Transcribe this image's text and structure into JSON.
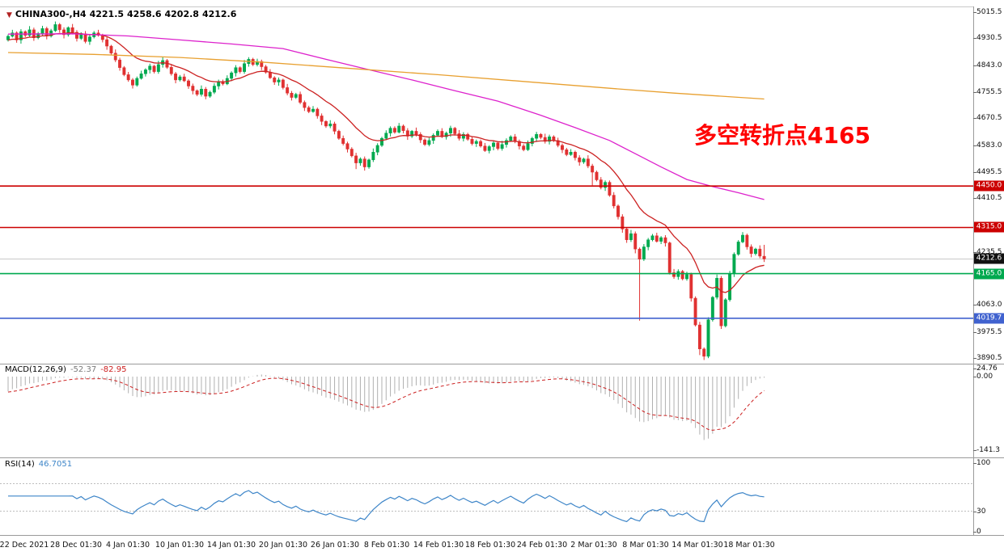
{
  "title_bar": {
    "symbol": "CHINA300-,H4",
    "open": "4221.5",
    "high": "4258.6",
    "low": "4202.8",
    "close": "4212.6"
  },
  "annotation": {
    "text": "多空转折点4165",
    "color": "#ff0000"
  },
  "bid": {
    "price": 4212.6,
    "label": "4212.6",
    "tag_bg": "#111111",
    "line_color": "#c9c9c9"
  },
  "levels": [
    {
      "price": 4450.0,
      "label": "4450.0",
      "color": "#cc0000"
    },
    {
      "price": 4315.0,
      "label": "4315.0",
      "color": "#cc0000"
    },
    {
      "price": 4165.0,
      "label": "4165.0",
      "color": "#00a94f"
    },
    {
      "price": 4019.7,
      "label": "4019.7",
      "color": "#4062cf"
    }
  ],
  "price_axis": {
    "ticks": [
      {
        "v": 5015.5,
        "label": "5015.5"
      },
      {
        "v": 4930.5,
        "label": "4930.5"
      },
      {
        "v": 4843.0,
        "label": "4843.0"
      },
      {
        "v": 4755.5,
        "label": "4755.5"
      },
      {
        "v": 4670.5,
        "label": "4670.5"
      },
      {
        "v": 4583.0,
        "label": "4583.0"
      },
      {
        "v": 4495.5,
        "label": "4495.5"
      },
      {
        "v": 4410.5,
        "label": "4410.5"
      },
      {
        "v": 4235.5,
        "label": "4235.5"
      },
      {
        "v": 4063.0,
        "label": "4063.0"
      },
      {
        "v": 3975.5,
        "label": "3975.5"
      },
      {
        "v": 3890.5,
        "label": "3890.5"
      }
    ]
  },
  "time_axis": {
    "labels": [
      "22 Dec 2021",
      "28 Dec 01:30",
      "4 Jan 01:30",
      "10 Jan 01:30",
      "14 Jan 01:30",
      "20 Jan 01:30",
      "26 Jan 01:30",
      "8 Feb 01:30",
      "14 Feb 01:30",
      "18 Feb 01:30",
      "24 Feb 01:30",
      "2 Mar 01:30",
      "8 Mar 01:30",
      "14 Mar 01:30",
      "18 Mar 01:30"
    ]
  },
  "chart_data": {
    "type": "candlestick",
    "symbol": "CHINA300-",
    "timeframe": "H4",
    "up_color": "#00a94f",
    "down_color": "#e03131",
    "candles": [
      [
        4925,
        4943,
        4920,
        4937
      ],
      [
        4937,
        4958,
        4933,
        4948
      ],
      [
        4948,
        4953,
        4916,
        4925
      ],
      [
        4925,
        4960,
        4913,
        4952
      ],
      [
        4952,
        4956,
        4934,
        4940
      ],
      [
        4940,
        4970,
        4933,
        4958
      ],
      [
        4958,
        4965,
        4922,
        4932
      ],
      [
        4932,
        4951,
        4927,
        4946
      ],
      [
        4946,
        4971,
        4940,
        4962
      ],
      [
        4962,
        4968,
        4927,
        4938
      ],
      [
        4938,
        4961,
        4933,
        4955
      ],
      [
        4955,
        4985,
        4951,
        4975
      ],
      [
        4975,
        4980,
        4949,
        4958
      ],
      [
        4958,
        4966,
        4930,
        4942
      ],
      [
        4942,
        4969,
        4936,
        4965
      ],
      [
        4965,
        4977,
        4943,
        4950
      ],
      [
        4950,
        4957,
        4920,
        4930
      ],
      [
        4930,
        4950,
        4925,
        4945
      ],
      [
        4945,
        4954,
        4914,
        4920
      ],
      [
        4920,
        4941,
        4909,
        4935
      ],
      [
        4935,
        4954,
        4930,
        4948
      ],
      [
        4948,
        4958,
        4936,
        4940
      ],
      [
        4940,
        4945,
        4917,
        4926
      ],
      [
        4926,
        4934,
        4893,
        4905
      ],
      [
        4905,
        4909,
        4876,
        4882
      ],
      [
        4882,
        4894,
        4853,
        4860
      ],
      [
        4860,
        4867,
        4825,
        4835
      ],
      [
        4835,
        4840,
        4807,
        4812
      ],
      [
        4812,
        4821,
        4789,
        4795
      ],
      [
        4795,
        4801,
        4767,
        4778
      ],
      [
        4778,
        4806,
        4773,
        4800
      ],
      [
        4800,
        4825,
        4796,
        4815
      ],
      [
        4815,
        4833,
        4806,
        4828
      ],
      [
        4828,
        4848,
        4816,
        4840
      ],
      [
        4840,
        4844,
        4816,
        4822
      ],
      [
        4822,
        4857,
        4815,
        4845
      ],
      [
        4845,
        4871,
        4835,
        4858
      ],
      [
        4858,
        4863,
        4831,
        4836
      ],
      [
        4836,
        4845,
        4809,
        4815
      ],
      [
        4815,
        4821,
        4784,
        4795
      ],
      [
        4795,
        4811,
        4790,
        4805
      ],
      [
        4805,
        4815,
        4788,
        4792
      ],
      [
        4792,
        4797,
        4766,
        4775
      ],
      [
        4775,
        4783,
        4748,
        4760
      ],
      [
        4760,
        4764,
        4742,
        4748
      ],
      [
        4748,
        4777,
        4741,
        4765
      ],
      [
        4765,
        4772,
        4732,
        4742
      ],
      [
        4742,
        4760,
        4737,
        4755
      ],
      [
        4755,
        4784,
        4749,
        4775
      ],
      [
        4775,
        4796,
        4764,
        4790
      ],
      [
        4790,
        4796,
        4777,
        4782
      ],
      [
        4782,
        4810,
        4778,
        4800
      ],
      [
        4800,
        4823,
        4791,
        4818
      ],
      [
        4818,
        4843,
        4806,
        4835
      ],
      [
        4835,
        4839,
        4816,
        4822
      ],
      [
        4822,
        4860,
        4815,
        4848
      ],
      [
        4848,
        4869,
        4838,
        4862
      ],
      [
        4862,
        4867,
        4840,
        4845
      ],
      [
        4845,
        4864,
        4839,
        4855
      ],
      [
        4855,
        4861,
        4827,
        4838
      ],
      [
        4838,
        4844,
        4815,
        4820
      ],
      [
        4820,
        4830,
        4798,
        4802
      ],
      [
        4802,
        4807,
        4779,
        4788
      ],
      [
        4788,
        4803,
        4776,
        4795
      ],
      [
        4795,
        4799,
        4764,
        4770
      ],
      [
        4770,
        4782,
        4745,
        4752
      ],
      [
        4752,
        4759,
        4728,
        4738
      ],
      [
        4738,
        4753,
        4733,
        4748
      ],
      [
        4748,
        4757,
        4716,
        4722
      ],
      [
        4722,
        4728,
        4694,
        4705
      ],
      [
        4705,
        4711,
        4687,
        4692
      ],
      [
        4692,
        4710,
        4688,
        4700
      ],
      [
        4700,
        4705,
        4669,
        4678
      ],
      [
        4678,
        4686,
        4648,
        4660
      ],
      [
        4660,
        4664,
        4639,
        4645
      ],
      [
        4645,
        4664,
        4638,
        4652
      ],
      [
        4652,
        4659,
        4618,
        4628
      ],
      [
        4628,
        4633,
        4600,
        4605
      ],
      [
        4605,
        4614,
        4582,
        4588
      ],
      [
        4588,
        4594,
        4559,
        4570
      ],
      [
        4570,
        4576,
        4543,
        4548
      ],
      [
        4548,
        4558,
        4505,
        4525
      ],
      [
        4525,
        4543,
        4516,
        4538
      ],
      [
        4538,
        4546,
        4500,
        4512
      ],
      [
        4512,
        4539,
        4506,
        4535
      ],
      [
        4535,
        4572,
        4528,
        4560
      ],
      [
        4560,
        4589,
        4550,
        4582
      ],
      [
        4582,
        4610,
        4577,
        4605
      ],
      [
        4605,
        4631,
        4599,
        4622
      ],
      [
        4622,
        4644,
        4611,
        4638
      ],
      [
        4638,
        4644,
        4620,
        4625
      ],
      [
        4625,
        4655,
        4621,
        4645
      ],
      [
        4645,
        4650,
        4621,
        4630
      ],
      [
        4630,
        4638,
        4600,
        4612
      ],
      [
        4612,
        4632,
        4606,
        4628
      ],
      [
        4628,
        4640,
        4611,
        4618
      ],
      [
        4618,
        4625,
        4590,
        4600
      ],
      [
        4600,
        4605,
        4580,
        4585
      ],
      [
        4585,
        4607,
        4579,
        4598
      ],
      [
        4598,
        4621,
        4587,
        4615
      ],
      [
        4615,
        4634,
        4610,
        4628
      ],
      [
        4628,
        4638,
        4606,
        4610
      ],
      [
        4610,
        4627,
        4601,
        4622
      ],
      [
        4622,
        4646,
        4610,
        4638
      ],
      [
        4638,
        4642,
        4614,
        4620
      ],
      [
        4620,
        4632,
        4598,
        4605
      ],
      [
        4605,
        4625,
        4595,
        4618
      ],
      [
        4618,
        4623,
        4597,
        4602
      ],
      [
        4602,
        4611,
        4582,
        4588
      ],
      [
        4588,
        4601,
        4577,
        4595
      ],
      [
        4595,
        4601,
        4575,
        4580
      ],
      [
        4580,
        4590,
        4561,
        4565
      ],
      [
        4565,
        4583,
        4556,
        4578
      ],
      [
        4578,
        4598,
        4566,
        4590
      ],
      [
        4590,
        4594,
        4566,
        4572
      ],
      [
        4572,
        4597,
        4565,
        4585
      ],
      [
        4585,
        4605,
        4575,
        4598
      ],
      [
        4598,
        4615,
        4593,
        4610
      ],
      [
        4610,
        4619,
        4589,
        4595
      ],
      [
        4595,
        4601,
        4569,
        4580
      ],
      [
        4580,
        4586,
        4563,
        4568
      ],
      [
        4568,
        4598,
        4564,
        4588
      ],
      [
        4588,
        4610,
        4579,
        4605
      ],
      [
        4605,
        4626,
        4593,
        4618
      ],
      [
        4618,
        4622,
        4602,
        4608
      ],
      [
        4608,
        4620,
        4588,
        4595
      ],
      [
        4595,
        4617,
        4585,
        4610
      ],
      [
        4610,
        4615,
        4593,
        4598
      ],
      [
        4598,
        4607,
        4576,
        4582
      ],
      [
        4582,
        4588,
        4557,
        4568
      ],
      [
        4568,
        4574,
        4547,
        4552
      ],
      [
        4552,
        4570,
        4548,
        4560
      ],
      [
        4560,
        4565,
        4533,
        4542
      ],
      [
        4542,
        4550,
        4516,
        4528
      ],
      [
        4528,
        4542,
        4522,
        4538
      ],
      [
        4538,
        4550,
        4508,
        4515
      ],
      [
        4515,
        4522,
        4452,
        4495
      ],
      [
        4495,
        4500,
        4465,
        4470
      ],
      [
        4470,
        4479,
        4439,
        4445
      ],
      [
        4445,
        4468,
        4434,
        4462
      ],
      [
        4462,
        4468,
        4415,
        4420
      ],
      [
        4420,
        4430,
        4377,
        4385
      ],
      [
        4385,
        4390,
        4341,
        4350
      ],
      [
        4350,
        4358,
        4298,
        4310
      ],
      [
        4310,
        4314,
        4265,
        4275
      ],
      [
        4275,
        4307,
        4268,
        4295
      ],
      [
        4295,
        4302,
        4231,
        4245
      ],
      [
        4245,
        4250,
        4012,
        4212
      ],
      [
        4212,
        4261,
        4206,
        4252
      ],
      [
        4252,
        4281,
        4241,
        4275
      ],
      [
        4275,
        4294,
        4270,
        4288
      ],
      [
        4288,
        4298,
        4266,
        4270
      ],
      [
        4270,
        4287,
        4261,
        4282
      ],
      [
        4282,
        4290,
        4253,
        4265
      ],
      [
        4265,
        4269,
        4162,
        4168
      ],
      [
        4168,
        4180,
        4148,
        4155
      ],
      [
        4155,
        4179,
        4145,
        4172
      ],
      [
        4172,
        4177,
        4143,
        4148
      ],
      [
        4148,
        4171,
        4142,
        4162
      ],
      [
        4162,
        4168,
        4074,
        4085
      ],
      [
        4085,
        4091,
        3993,
        3998
      ],
      [
        3998,
        4008,
        3900,
        3920
      ],
      [
        3920,
        3925,
        3884,
        3896
      ],
      [
        3896,
        4023,
        3890,
        4015
      ],
      [
        4015,
        4092,
        4009,
        4088
      ],
      [
        4088,
        4162,
        4081,
        4150
      ],
      [
        4150,
        4157,
        3985,
        3995
      ],
      [
        3995,
        4085,
        3990,
        4080
      ],
      [
        4080,
        4174,
        4074,
        4165
      ],
      [
        4165,
        4234,
        4154,
        4228
      ],
      [
        4228,
        4274,
        4223,
        4268
      ],
      [
        4268,
        4300,
        4264,
        4290
      ],
      [
        4290,
        4295,
        4243,
        4252
      ],
      [
        4252,
        4260,
        4218,
        4230
      ],
      [
        4230,
        4249,
        4224,
        4245
      ],
      [
        4245,
        4257,
        4215,
        4222
      ],
      [
        4221.5,
        4258.6,
        4202.8,
        4212.6
      ]
    ],
    "moving_averages": [
      {
        "name": "fast-ma",
        "type": "ema",
        "period": 16,
        "seed": 4923,
        "color": "#cc2222"
      },
      {
        "name": "medium-ma",
        "type": "points",
        "color": "#dd22cc",
        "points": [
          [
            0,
            4944
          ],
          [
            15,
            4945
          ],
          [
            28,
            4938
          ],
          [
            40,
            4925
          ],
          [
            52,
            4912
          ],
          [
            64,
            4897
          ],
          [
            74,
            4862
          ],
          [
            84,
            4828
          ],
          [
            94,
            4795
          ],
          [
            104,
            4760
          ],
          [
            114,
            4726
          ],
          [
            124,
            4680
          ],
          [
            132,
            4640
          ],
          [
            140,
            4598
          ],
          [
            146,
            4555
          ],
          [
            152,
            4512
          ],
          [
            158,
            4471
          ],
          [
            164,
            4448
          ],
          [
            170,
            4428
          ],
          [
            176,
            4406
          ]
        ]
      },
      {
        "name": "slow-ma",
        "type": "points",
        "color": "#e8a030",
        "points": [
          [
            0,
            4884
          ],
          [
            20,
            4878
          ],
          [
            40,
            4868
          ],
          [
            60,
            4852
          ],
          [
            80,
            4832
          ],
          [
            100,
            4812
          ],
          [
            120,
            4790
          ],
          [
            140,
            4768
          ],
          [
            155,
            4752
          ],
          [
            165,
            4743
          ],
          [
            176,
            4733
          ]
        ]
      }
    ],
    "macd": {
      "label": "MACD(12,26,9)",
      "value_main": "-52.37",
      "value_signal": "-82.95",
      "fast": 12,
      "slow": 26,
      "signal": 9,
      "hist_color": "#b0b0b0",
      "signal_color": "#cc2020",
      "seed_fast": 4920,
      "seed_slow": 4952,
      "seed_signal": -30,
      "axis_ticks": [
        {
          "v": 24.76,
          "label": "24.76"
        },
        {
          "v": 0,
          "label": "0.00"
        },
        {
          "v": -141.3,
          "label": "-141.3"
        }
      ]
    },
    "rsi": {
      "label": "RSI(14)",
      "value": "46.7051",
      "period": 14,
      "color": "#3d85c8",
      "levels": [
        30,
        70
      ],
      "axis_ticks": [
        {
          "v": 100,
          "label": "100"
        },
        {
          "v": 30,
          "label": "30"
        },
        {
          "v": 0,
          "label": "0"
        }
      ]
    }
  }
}
